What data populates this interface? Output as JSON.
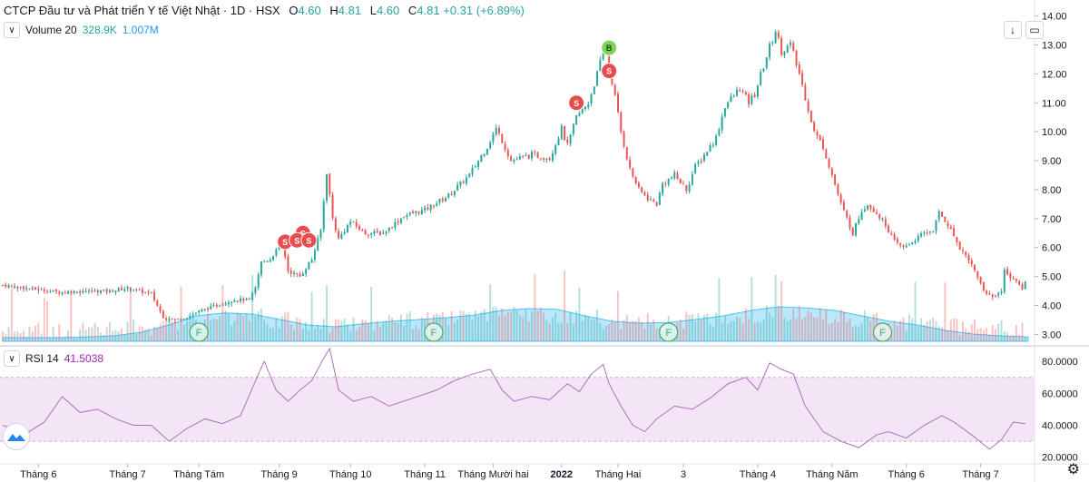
{
  "header": {
    "title": "CTCP Đầu tư và Phát triển Y tế Việt Nhật · 1D · HSX",
    "ohlc": [
      {
        "label": "O",
        "value": "4.60"
      },
      {
        "label": "H",
        "value": "4.81"
      },
      {
        "label": "L",
        "value": "4.60"
      },
      {
        "label": "C",
        "value": "4.81"
      }
    ],
    "change": "+0.31 (+6.89%)"
  },
  "volume_indicator": {
    "label": "Volume 20",
    "value1": "328.9K",
    "value2": "1.007M"
  },
  "rsi_indicator": {
    "label": "RSI 14",
    "value": "41.5038"
  },
  "colors": {
    "up": "#26a69a",
    "down": "#ef5350",
    "rsi_line": "#b06fc0",
    "rsi_band": "#f3e5f5",
    "vol_ma": "#4fc3f7"
  },
  "icons": [
    "chevron-down-icon",
    "download-icon",
    "fullscreen-icon",
    "settings-icon",
    "logo-icon"
  ],
  "chart_data": {
    "type": "candlestick",
    "price_axis": {
      "ticks": [
        "14.00",
        "13.00",
        "12.00",
        "11.00",
        "10.00",
        "9.00",
        "8.00",
        "7.00",
        "6.00",
        "5.00",
        "4.00",
        "3.00"
      ],
      "range": [
        2.7,
        14.3
      ]
    },
    "rsi_axis": {
      "ticks": [
        "80.0000",
        "60.0000",
        "40.0000",
        "20.0000"
      ],
      "range": [
        17,
        88
      ],
      "band": [
        30,
        70
      ]
    },
    "x_labels": [
      "Tháng 6",
      "Tháng 7",
      "Tháng Tám",
      "Tháng 9",
      "Tháng 10",
      "Tháng 11",
      "Tháng Mười hai",
      "2022",
      "Tháng Hai",
      "3",
      "Tháng 4",
      "Tháng Năm",
      "Tháng 6",
      "Tháng 7"
    ],
    "price_path": [
      [
        0,
        4.7
      ],
      [
        12,
        4.55
      ],
      [
        20,
        4.45
      ],
      [
        28,
        4.5
      ],
      [
        36,
        4.5
      ],
      [
        42,
        4.6
      ],
      [
        50,
        4.4
      ],
      [
        54,
        3.6
      ],
      [
        58,
        3.5
      ],
      [
        62,
        3.6
      ],
      [
        66,
        3.8
      ],
      [
        72,
        4.0
      ],
      [
        78,
        4.2
      ],
      [
        83,
        4.2
      ],
      [
        85,
        4.6
      ],
      [
        87,
        5.5
      ],
      [
        90,
        5.6
      ],
      [
        94,
        6.2
      ],
      [
        96,
        5.2
      ],
      [
        100,
        5.0
      ],
      [
        104,
        5.6
      ],
      [
        107,
        6.6
      ],
      [
        109,
        8.6
      ],
      [
        111,
        7.0
      ],
      [
        113,
        6.3
      ],
      [
        117,
        6.9
      ],
      [
        122,
        6.5
      ],
      [
        128,
        6.5
      ],
      [
        135,
        7.1
      ],
      [
        142,
        7.3
      ],
      [
        150,
        7.8
      ],
      [
        157,
        8.5
      ],
      [
        163,
        9.5
      ],
      [
        166,
        10.1
      ],
      [
        168,
        9.7
      ],
      [
        171,
        9.0
      ],
      [
        178,
        9.2
      ],
      [
        184,
        9.1
      ],
      [
        188,
        10.1
      ],
      [
        190,
        9.5
      ],
      [
        193,
        10.5
      ],
      [
        197,
        11.0
      ],
      [
        200,
        12.0
      ],
      [
        203,
        13.1
      ],
      [
        204,
        12.3
      ],
      [
        206,
        11.2
      ],
      [
        208,
        10.0
      ],
      [
        211,
        8.7
      ],
      [
        214,
        8.0
      ],
      [
        217,
        7.7
      ],
      [
        220,
        7.5
      ],
      [
        222,
        8.2
      ],
      [
        226,
        8.5
      ],
      [
        230,
        8.0
      ],
      [
        233,
        8.8
      ],
      [
        236,
        9.2
      ],
      [
        240,
        9.8
      ],
      [
        243,
        10.9
      ],
      [
        248,
        11.5
      ],
      [
        251,
        11.0
      ],
      [
        253,
        11.3
      ],
      [
        257,
        12.6
      ],
      [
        260,
        13.5
      ],
      [
        262,
        12.8
      ],
      [
        265,
        13.0
      ],
      [
        268,
        12.0
      ],
      [
        270,
        11.2
      ],
      [
        273,
        10.0
      ],
      [
        276,
        9.5
      ],
      [
        279,
        8.5
      ],
      [
        282,
        7.5
      ],
      [
        286,
        6.5
      ],
      [
        289,
        7.3
      ],
      [
        291,
        7.5
      ],
      [
        294,
        7.2
      ],
      [
        297,
        6.8
      ],
      [
        300,
        6.2
      ],
      [
        303,
        6.0
      ],
      [
        306,
        6.2
      ],
      [
        310,
        6.5
      ],
      [
        313,
        6.6
      ],
      [
        315,
        7.2
      ],
      [
        318,
        6.8
      ],
      [
        322,
        6.0
      ],
      [
        325,
        5.6
      ],
      [
        328,
        5.0
      ],
      [
        330,
        4.5
      ],
      [
        333,
        4.3
      ],
      [
        336,
        4.5
      ],
      [
        337,
        5.2
      ],
      [
        339,
        5.0
      ],
      [
        341,
        4.8
      ],
      [
        343,
        4.6
      ],
      [
        344,
        4.81
      ]
    ],
    "rsi_path": [
      [
        0,
        40
      ],
      [
        8,
        35
      ],
      [
        14,
        42
      ],
      [
        20,
        58
      ],
      [
        26,
        48
      ],
      [
        32,
        50
      ],
      [
        38,
        44
      ],
      [
        44,
        40
      ],
      [
        50,
        40
      ],
      [
        56,
        30
      ],
      [
        62,
        38
      ],
      [
        68,
        44
      ],
      [
        74,
        41
      ],
      [
        80,
        46
      ],
      [
        86,
        72
      ],
      [
        88,
        80
      ],
      [
        92,
        62
      ],
      [
        96,
        55
      ],
      [
        100,
        62
      ],
      [
        104,
        68
      ],
      [
        108,
        82
      ],
      [
        110,
        88
      ],
      [
        113,
        62
      ],
      [
        118,
        55
      ],
      [
        124,
        58
      ],
      [
        130,
        52
      ],
      [
        138,
        57
      ],
      [
        146,
        62
      ],
      [
        152,
        68
      ],
      [
        158,
        72
      ],
      [
        164,
        75
      ],
      [
        168,
        62
      ],
      [
        172,
        55
      ],
      [
        178,
        58
      ],
      [
        184,
        56
      ],
      [
        190,
        66
      ],
      [
        194,
        61
      ],
      [
        198,
        72
      ],
      [
        202,
        78
      ],
      [
        204,
        66
      ],
      [
        208,
        52
      ],
      [
        212,
        40
      ],
      [
        216,
        36
      ],
      [
        220,
        44
      ],
      [
        226,
        52
      ],
      [
        232,
        50
      ],
      [
        238,
        57
      ],
      [
        244,
        66
      ],
      [
        250,
        70
      ],
      [
        254,
        62
      ],
      [
        258,
        79
      ],
      [
        262,
        75
      ],
      [
        266,
        72
      ],
      [
        270,
        52
      ],
      [
        276,
        36
      ],
      [
        282,
        30
      ],
      [
        288,
        26
      ],
      [
        294,
        34
      ],
      [
        298,
        36
      ],
      [
        304,
        32
      ],
      [
        310,
        40
      ],
      [
        316,
        46
      ],
      [
        320,
        42
      ],
      [
        326,
        34
      ],
      [
        332,
        25
      ],
      [
        336,
        31
      ],
      [
        340,
        42
      ],
      [
        344,
        41
      ]
    ],
    "volume_profile": [
      0.1,
      0.1,
      0.1,
      0.12,
      0.15,
      0.25,
      0.45,
      0.7,
      0.78,
      0.75,
      0.6,
      0.45,
      0.4,
      0.48,
      0.55,
      0.6,
      0.65,
      0.72,
      0.85,
      0.9,
      0.88,
      0.7,
      0.55,
      0.5,
      0.52,
      0.6,
      0.7,
      0.85,
      0.95,
      0.92,
      0.85,
      0.7,
      0.55,
      0.45,
      0.3,
      0.2,
      0.15,
      0.12
    ],
    "markers": [
      {
        "type": "S",
        "day": 95,
        "price": 6.2
      },
      {
        "type": "S",
        "day": 101,
        "price": 6.5
      },
      {
        "type": "S",
        "day": 99,
        "price": 6.25
      },
      {
        "type": "S",
        "day": 103,
        "price": 6.25
      },
      {
        "type": "S",
        "day": 193,
        "price": 11.0
      },
      {
        "type": "B",
        "day": 204,
        "price": 12.9
      },
      {
        "type": "S",
        "day": 204,
        "price": 12.1
      }
    ],
    "f_markers": [
      66,
      145,
      224,
      296
    ]
  }
}
